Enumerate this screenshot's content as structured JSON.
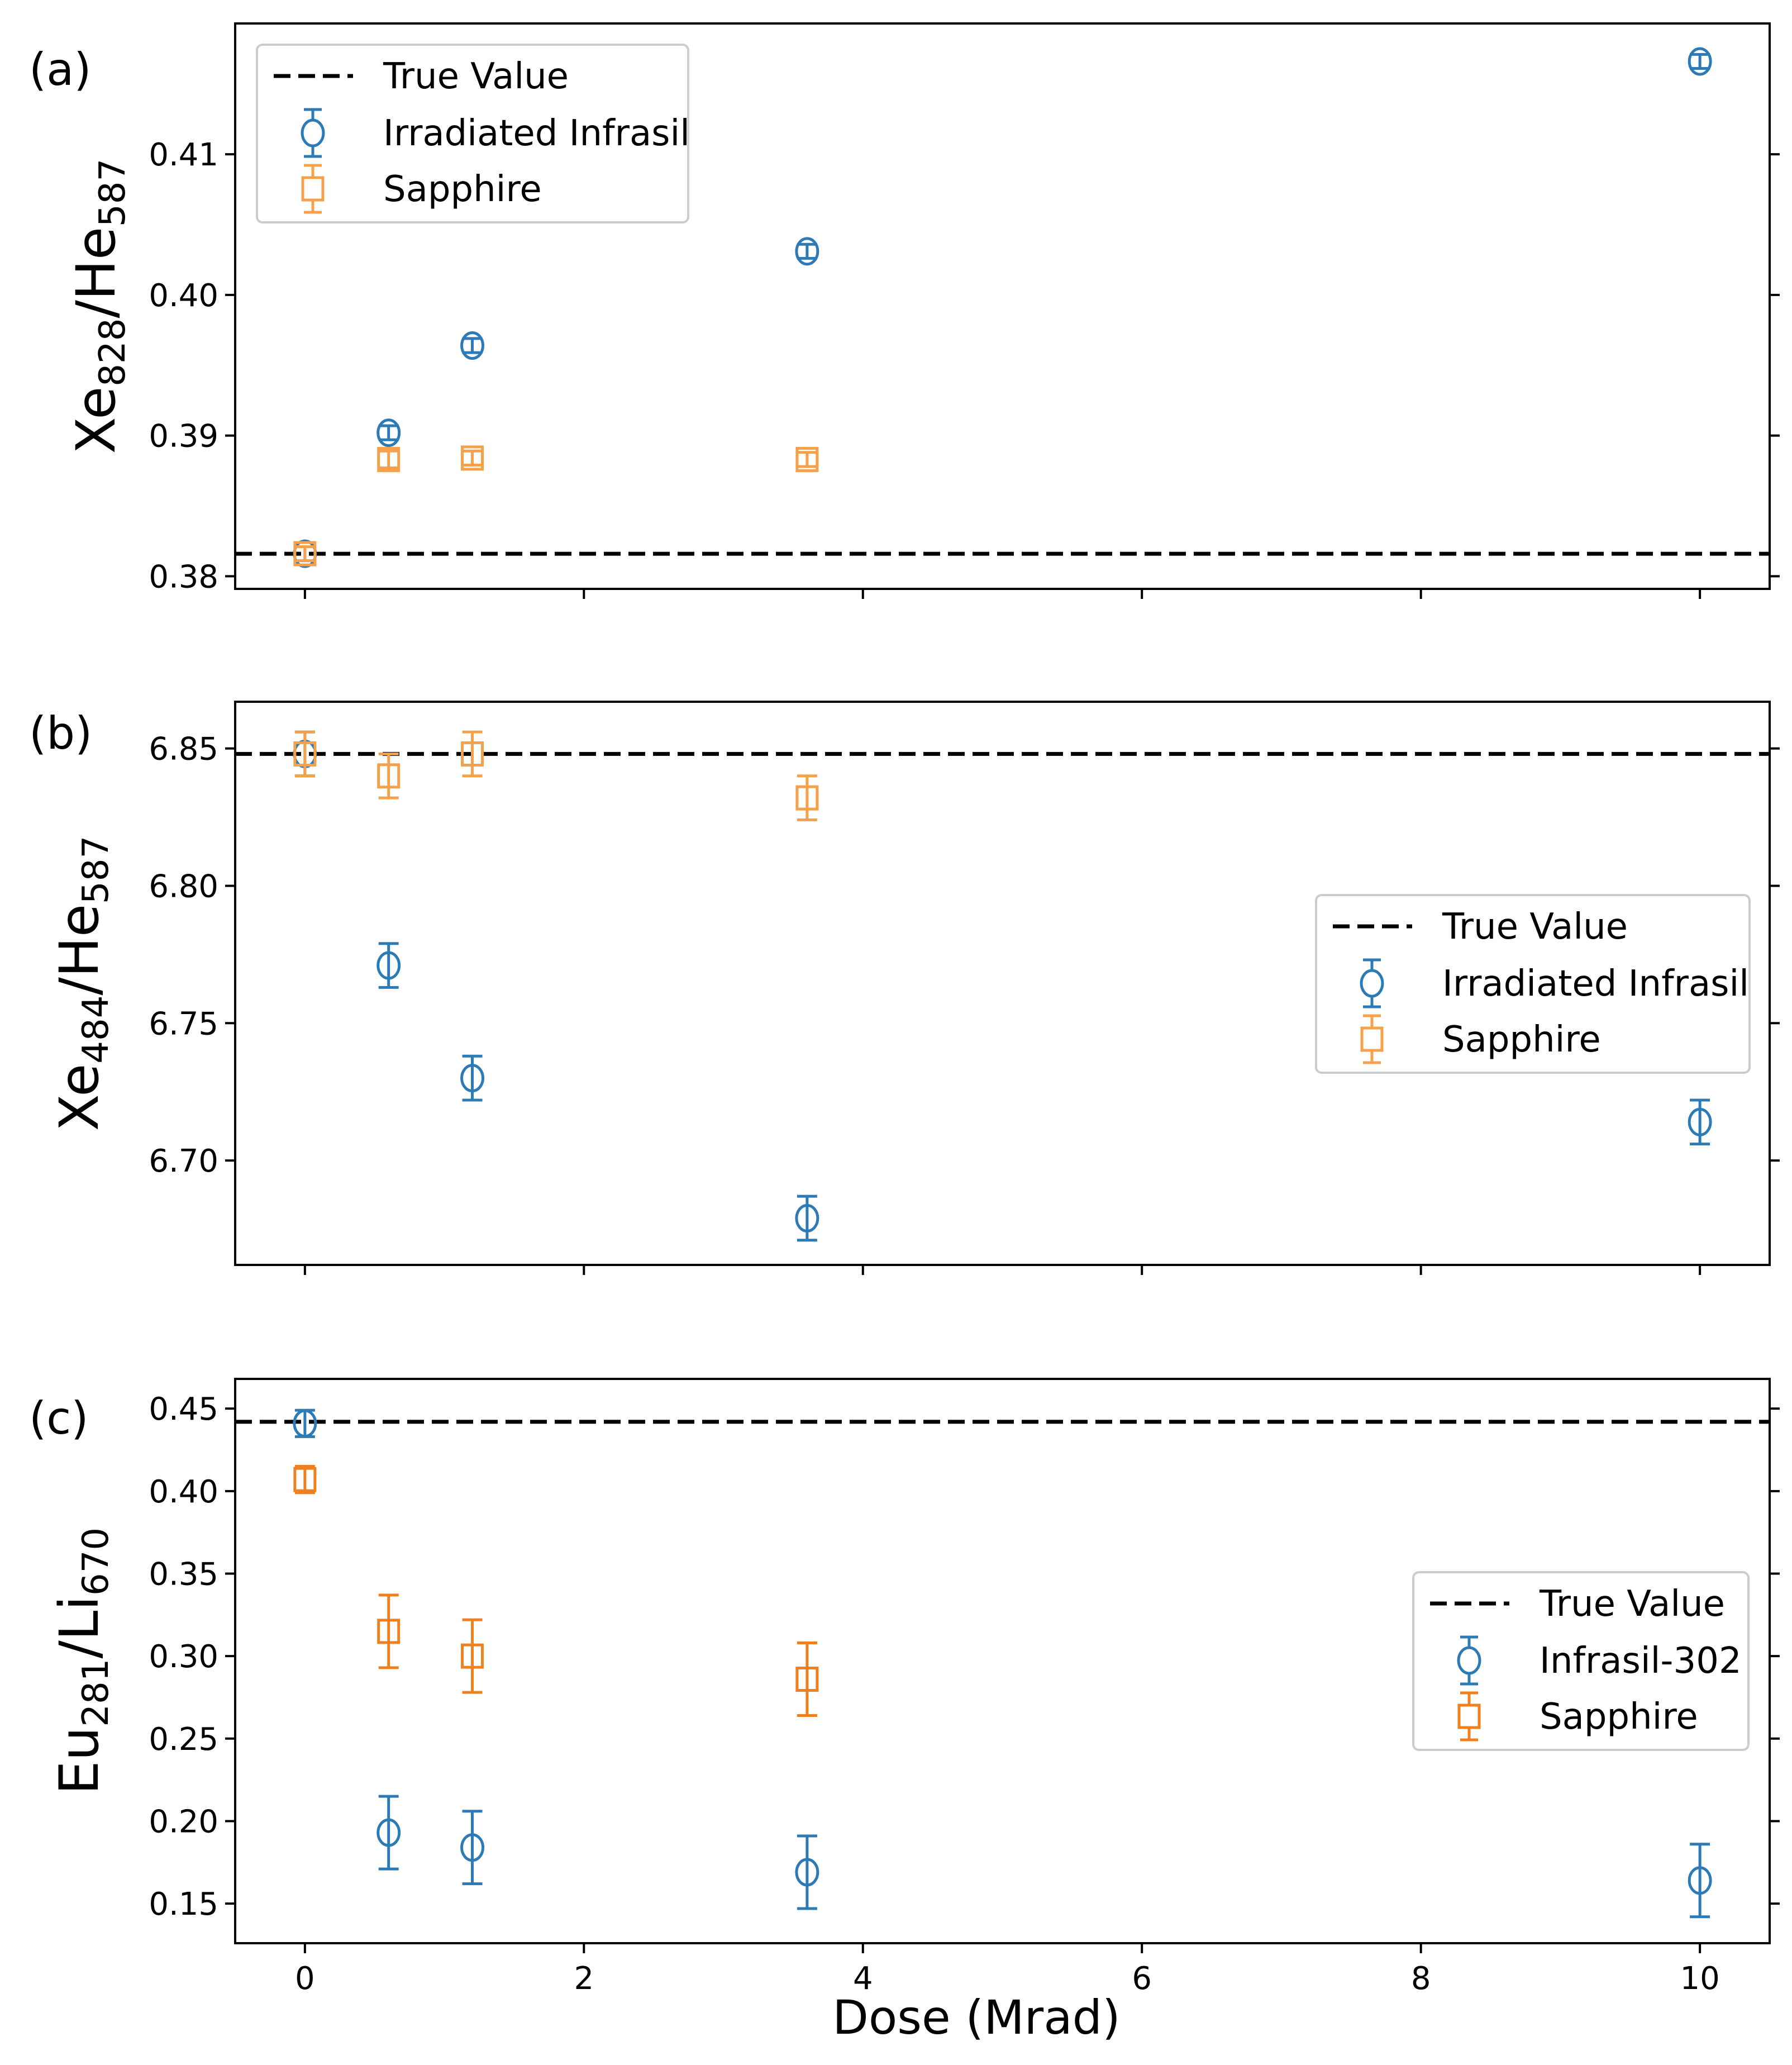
{
  "figure": {
    "xlabel": "Dose (Mrad)",
    "colors": {
      "irradiated_infrasil": "#2d7bb6",
      "sapphire_light": "#f5a04b",
      "infrasil_302": "#2d7bb6",
      "sapphire_dark": "#f0801e",
      "true_value": "#000000",
      "overlap": "#a07850"
    }
  },
  "chart_data": [
    {
      "type": "scatter",
      "panel_label": "(a)",
      "ylabel_parts": [
        "Xe",
        "828",
        "/He",
        "587"
      ],
      "xlim": [
        -0.5,
        10.5
      ],
      "ylim": [
        0.3791,
        0.4193
      ],
      "x_ticks": [
        0,
        2,
        4,
        6,
        8,
        10
      ],
      "y_ticks": [
        0.38,
        0.39,
        0.4,
        0.41
      ],
      "y_tick_labels": [
        "0.38",
        "0.39",
        "0.40",
        "0.41"
      ],
      "show_x_tick_labels": false,
      "true_value": 0.3816,
      "legend_position": "upper-left",
      "legend": [
        "True Value",
        "Irradiated Infrasil",
        "Sapphire"
      ],
      "series": [
        {
          "name": "Irradiated Infrasil",
          "marker": "circle",
          "color": "#2d7bb6",
          "x": [
            0,
            0.6,
            1.2,
            3.6,
            10
          ],
          "y": [
            0.3816,
            0.3902,
            0.3964,
            0.4031,
            0.4166
          ],
          "err": [
            0.0005,
            0.0005,
            0.0005,
            0.0005,
            0.0005
          ]
        },
        {
          "name": "Sapphire",
          "marker": "square",
          "color": "#f5a04b",
          "x": [
            0,
            0.6,
            1.2,
            3.6
          ],
          "y": [
            0.3816,
            0.3883,
            0.3884,
            0.3883
          ],
          "err": [
            0.0005,
            0.0006,
            0.0005,
            0.0005
          ]
        }
      ]
    },
    {
      "type": "scatter",
      "panel_label": "(b)",
      "ylabel_parts": [
        "Xe",
        "484",
        "/He",
        "587"
      ],
      "xlim": [
        -0.5,
        10.5
      ],
      "ylim": [
        6.662,
        6.867
      ],
      "x_ticks": [
        0,
        2,
        4,
        6,
        8,
        10
      ],
      "y_ticks": [
        6.7,
        6.75,
        6.8,
        6.85
      ],
      "y_tick_labels": [
        "6.70",
        "6.75",
        "6.80",
        "6.85"
      ],
      "show_x_tick_labels": false,
      "true_value": 6.848,
      "legend_position": "center-right",
      "legend": [
        "True Value",
        "Irradiated Infrasil",
        "Sapphire"
      ],
      "series": [
        {
          "name": "Irradiated Infrasil",
          "marker": "circle",
          "color": "#2d7bb6",
          "x": [
            0,
            0.6,
            1.2,
            3.6,
            10
          ],
          "y": [
            6.848,
            6.771,
            6.73,
            6.679,
            6.714
          ],
          "err": [
            0.008,
            0.008,
            0.008,
            0.008,
            0.008
          ]
        },
        {
          "name": "Sapphire",
          "marker": "square",
          "color": "#f5a04b",
          "x": [
            0,
            0.6,
            1.2,
            3.6
          ],
          "y": [
            6.848,
            6.84,
            6.848,
            6.832
          ],
          "err": [
            0.008,
            0.008,
            0.008,
            0.008
          ]
        }
      ]
    },
    {
      "type": "scatter",
      "panel_label": "(c)",
      "ylabel_parts": [
        "Eu",
        "281",
        "/Li",
        "670"
      ],
      "xlim": [
        -0.5,
        10.5
      ],
      "ylim": [
        0.126,
        0.468
      ],
      "x_ticks": [
        0,
        2,
        4,
        6,
        8,
        10
      ],
      "x_tick_labels": [
        "0",
        "2",
        "4",
        "6",
        "8",
        "10"
      ],
      "y_ticks": [
        0.15,
        0.2,
        0.25,
        0.3,
        0.35,
        0.4,
        0.45
      ],
      "y_tick_labels": [
        "0.15",
        "0.20",
        "0.25",
        "0.30",
        "0.35",
        "0.40",
        "0.45"
      ],
      "show_x_tick_labels": true,
      "true_value": 0.442,
      "legend_position": "center-right",
      "legend": [
        "True Value",
        "Infrasil-302",
        "Sapphire"
      ],
      "series": [
        {
          "name": "Infrasil-302",
          "marker": "circle",
          "color": "#2d7bb6",
          "x": [
            0,
            0.6,
            1.2,
            3.6,
            10
          ],
          "y": [
            0.441,
            0.193,
            0.184,
            0.169,
            0.164
          ],
          "err": [
            0.008,
            0.022,
            0.022,
            0.022,
            0.022
          ]
        },
        {
          "name": "Sapphire",
          "marker": "square",
          "color": "#f0801e",
          "x": [
            0,
            0.6,
            1.2,
            3.6
          ],
          "y": [
            0.407,
            0.315,
            0.3,
            0.286
          ],
          "err": [
            0.008,
            0.022,
            0.022,
            0.022
          ]
        }
      ]
    }
  ]
}
